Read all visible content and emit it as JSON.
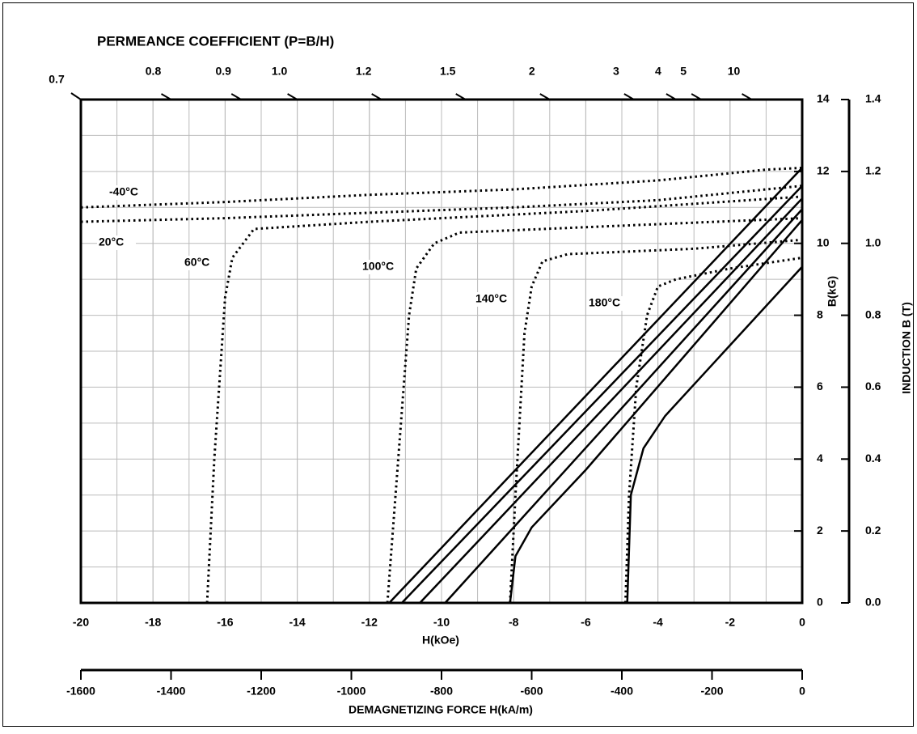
{
  "chart_data": {
    "type": "line",
    "title": "PERMEANCE COEFFICIENT (P=B/H)",
    "xlabel": "H(kOe)",
    "ylabel": "B(kG)",
    "y2label": "INDUCTION B (T)",
    "x2label": "DEMAGNETIZING FORCE H(kA/m)",
    "xlim": [
      -20,
      0
    ],
    "xticks": [
      -20,
      -18,
      -16,
      -14,
      -12,
      -10,
      -8,
      -6,
      -4,
      -2,
      0
    ],
    "ylim": [
      0,
      14
    ],
    "yticks": [
      0,
      2,
      4,
      6,
      8,
      10,
      12,
      14
    ],
    "y2lim": [
      0,
      1.4
    ],
    "y2ticks": [
      {
        "value": 0,
        "label": "0.0"
      },
      0.2,
      0.4,
      0.6,
      0.8,
      {
        "value": 1,
        "label": "1.0"
      },
      1.2,
      1.4
    ],
    "x2lim": [
      -1600,
      0
    ],
    "x2ticks": [
      -1600,
      -1400,
      -1200,
      -1000,
      -800,
      -600,
      -400,
      -200,
      0
    ],
    "permeance": [
      0.7,
      0.8,
      0.9,
      {
        "value": 1,
        "label": "1.0"
      },
      1.2,
      1.5,
      2,
      3,
      4,
      5,
      10
    ],
    "grid": true,
    "series": [
      {
        "name": "-40°C",
        "color": "#000",
        "dash": "dotted",
        "x": [
          -20,
          -16,
          -12,
          -8,
          -4,
          -1,
          0
        ],
        "values": [
          11.0,
          11.15,
          11.35,
          11.5,
          11.75,
          12.05,
          12.1
        ]
      },
      {
        "name": "20°C",
        "color": "#000",
        "dash": "dotted",
        "x": [
          -20,
          -16,
          -12,
          -8,
          -4,
          -1,
          0
        ],
        "values": [
          10.6,
          10.7,
          10.85,
          11.0,
          11.2,
          11.5,
          11.6
        ]
      },
      {
        "name": "60°C",
        "color": "#000",
        "dash": "dotted",
        "x": [
          -16.5,
          -16.3,
          -16,
          -15.8,
          -15.2,
          -12,
          -6,
          0
        ],
        "values": [
          0,
          4,
          8.5,
          9.6,
          10.4,
          10.6,
          10.9,
          11.3
        ]
      },
      {
        "name": "100°C",
        "color": "#000",
        "dash": "dotted",
        "x": [
          -11.5,
          -11.2,
          -10.9,
          -10.7,
          -10.2,
          -9.5,
          -6,
          0
        ],
        "values": [
          0,
          4,
          8,
          9.3,
          10.0,
          10.3,
          10.45,
          10.7
        ]
      },
      {
        "name": "140°C",
        "color": "#000",
        "dash": "dotted",
        "x": [
          -8.1,
          -7.95,
          -7.7,
          -7.5,
          -7.2,
          -6.5,
          -3,
          0
        ],
        "values": [
          0,
          3,
          7.5,
          8.8,
          9.5,
          9.7,
          9.85,
          10.1
        ]
      },
      {
        "name": "180°C",
        "color": "#000",
        "dash": "dotted",
        "x": [
          -4.9,
          -4.8,
          -4.6,
          -4.3,
          -4,
          -3.5,
          -2,
          0
        ],
        "values": [
          0,
          3,
          6,
          8,
          8.8,
          9.0,
          9.3,
          9.6
        ]
      },
      {
        "color": "#000",
        "dash": "solid",
        "x": [
          -11.45,
          0
        ],
        "values": [
          0,
          12.1
        ]
      },
      {
        "color": "#000",
        "dash": "solid",
        "x": [
          -11.1,
          0
        ],
        "values": [
          0,
          11.6
        ]
      },
      {
        "color": "#000",
        "dash": "solid",
        "x": [
          -10.6,
          0
        ],
        "values": [
          0,
          11.25
        ]
      },
      {
        "color": "#000",
        "dash": "solid",
        "x": [
          -9.9,
          0
        ],
        "values": [
          0,
          10.95
        ]
      },
      {
        "color": "#000",
        "dash": "solid",
        "x": [
          -8.1,
          -7.95,
          -7.5,
          -6,
          0
        ],
        "values": [
          0,
          1.3,
          2.1,
          3.7,
          10.65
        ]
      },
      {
        "color": "#000",
        "dash": "solid",
        "x": [
          -4.85,
          -4.75,
          -4.4,
          -3.8,
          0
        ],
        "values": [
          0,
          3.0,
          4.3,
          5.2,
          9.35
        ]
      }
    ]
  }
}
